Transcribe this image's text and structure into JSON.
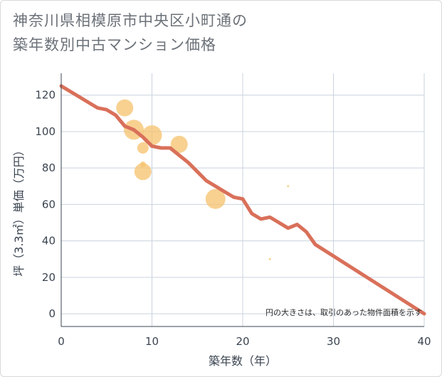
{
  "title_line1": "神奈川県相模原市中央区小町通の",
  "title_line2": "築年数別中古マンション価格",
  "chart_data": {
    "type": "scatter",
    "title": "神奈川県相模原市中央区小町通の築年数別中古マンション価格",
    "xlabel": "築年数（年）",
    "ylabel": "坪（3.3㎡）単価（万円）",
    "xlim": [
      0,
      40
    ],
    "ylim": [
      -7,
      132
    ],
    "x_ticks": [
      0,
      10,
      20,
      30,
      40
    ],
    "y_ticks": [
      0,
      20,
      40,
      60,
      80,
      100,
      120
    ],
    "grid": true,
    "note": "円の大きさは、取引のあった物件面積を示す",
    "colors": {
      "bubble": "#f5c16c",
      "trend": "#d9705a",
      "grid": "#c9d3dd"
    },
    "points": [
      {
        "x": 7,
        "y": 113,
        "size": 12
      },
      {
        "x": 8,
        "y": 101,
        "size": 14
      },
      {
        "x": 9,
        "y": 91,
        "size": 8
      },
      {
        "x": 9,
        "y": 78,
        "size": 12
      },
      {
        "x": 9,
        "y": 82,
        "size": 4
      },
      {
        "x": 10,
        "y": 98,
        "size": 14
      },
      {
        "x": 13,
        "y": 93,
        "size": 12
      },
      {
        "x": 17,
        "y": 63,
        "size": 14
      },
      {
        "x": 25,
        "y": 70,
        "size": 1.5
      },
      {
        "x": 23,
        "y": 30,
        "size": 1.5
      }
    ],
    "trend": {
      "x": [
        0,
        2,
        4,
        5,
        6,
        7,
        8,
        9,
        10,
        11,
        12,
        13,
        14,
        15,
        16,
        17,
        18,
        19,
        20,
        21,
        22,
        23,
        24,
        25,
        26,
        27,
        28,
        40
      ],
      "y": [
        125,
        119,
        113,
        112,
        109,
        103,
        101,
        97,
        92,
        91,
        91,
        87,
        83,
        78,
        73,
        70,
        67,
        64,
        63,
        55,
        52,
        53,
        50,
        47,
        49,
        45,
        38,
        0
      ]
    }
  }
}
